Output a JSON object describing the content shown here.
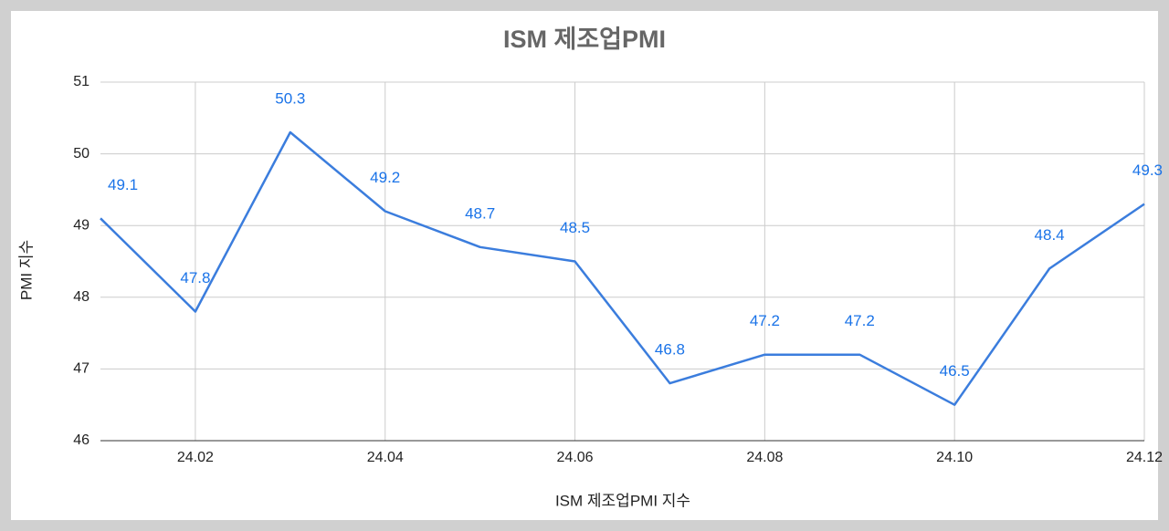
{
  "chart_data": {
    "type": "line",
    "title": "ISM 제조업PMI",
    "x_label": "ISM 제조업PMI 지수",
    "y_label": "PMI 지수",
    "categories": [
      null,
      "24.02",
      null,
      "24.04",
      null,
      "24.06",
      null,
      "24.08",
      null,
      "24.10",
      null,
      "24.12"
    ],
    "series": [
      {
        "name": "ISM 제조업PMI 지수",
        "color": "#3b7ddd",
        "values": [
          49.1,
          47.8,
          50.3,
          49.2,
          48.7,
          48.5,
          46.8,
          47.2,
          47.2,
          46.5,
          48.4,
          49.3
        ]
      }
    ],
    "ylim": [
      46,
      51
    ],
    "yticks": [
      46,
      47,
      48,
      49,
      50,
      51
    ],
    "grid": true,
    "data_labels": true
  }
}
